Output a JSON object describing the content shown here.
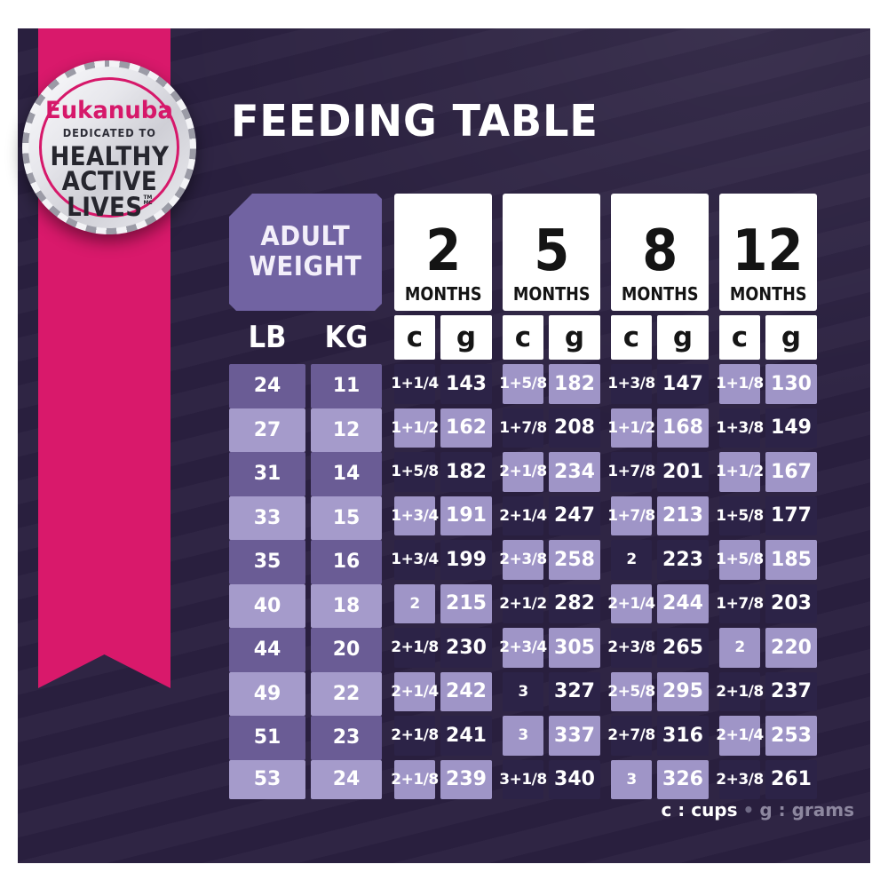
{
  "title": "FEEDING TABLE",
  "badge": {
    "brand": "Eukanuba",
    "dedicated": "DEDICATED TO",
    "healthy": "HEALTHY",
    "active": "ACTIVE",
    "lives": "LIVES",
    "tm": "TM",
    "mc": "MC"
  },
  "table": {
    "adult_weight_line1": "ADULT",
    "adult_weight_line2": "WEIGHT",
    "lb_header": "LB",
    "kg_header": "KG",
    "months": [
      {
        "number": "2",
        "label": "MONTHS"
      },
      {
        "number": "5",
        "label": "MONTHS"
      },
      {
        "number": "8",
        "label": "MONTHS"
      },
      {
        "number": "12",
        "label": "MONTHS"
      }
    ],
    "cg_headers": [
      "c",
      "g",
      "c",
      "g",
      "c",
      "g",
      "c",
      "g"
    ]
  },
  "legend": {
    "cups": "c : cups",
    "bullet": "•",
    "grams": "g : grams"
  },
  "colors": {
    "accent_pink": "#d9196b",
    "panel_dark": "#2a2040",
    "cell_dark": "#2c2347",
    "cell_light": "#9f95c7",
    "cell_medium": "#6a5c95",
    "header_purple": "#7163a2",
    "card_white": "#ffffff"
  },
  "chart_data": {
    "type": "table",
    "title": "FEEDING TABLE",
    "columns": [
      "LB",
      "KG",
      "2 MONTHS c",
      "2 MONTHS g",
      "5 MONTHS c",
      "5 MONTHS g",
      "8 MONTHS c",
      "8 MONTHS g",
      "12 MONTHS c",
      "12 MONTHS g"
    ],
    "units": {
      "c": "cups",
      "g": "grams"
    },
    "rows": [
      [
        "24",
        "11",
        "1+1/4",
        "143",
        "1+5/8",
        "182",
        "1+3/8",
        "147",
        "1+1/8",
        "130"
      ],
      [
        "27",
        "12",
        "1+1/2",
        "162",
        "1+7/8",
        "208",
        "1+1/2",
        "168",
        "1+3/8",
        "149"
      ],
      [
        "31",
        "14",
        "1+5/8",
        "182",
        "2+1/8",
        "234",
        "1+7/8",
        "201",
        "1+1/2",
        "167"
      ],
      [
        "33",
        "15",
        "1+3/4",
        "191",
        "2+1/4",
        "247",
        "1+7/8",
        "213",
        "1+5/8",
        "177"
      ],
      [
        "35",
        "16",
        "1+3/4",
        "199",
        "2+3/8",
        "258",
        "2",
        "223",
        "1+5/8",
        "185"
      ],
      [
        "40",
        "18",
        "2",
        "215",
        "2+1/2",
        "282",
        "2+1/4",
        "244",
        "1+7/8",
        "203"
      ],
      [
        "44",
        "20",
        "2+1/8",
        "230",
        "2+3/4",
        "305",
        "2+3/8",
        "265",
        "2",
        "220"
      ],
      [
        "49",
        "22",
        "2+1/4",
        "242",
        "3",
        "327",
        "2+5/8",
        "295",
        "2+1/8",
        "237"
      ],
      [
        "51",
        "23",
        "2+1/8",
        "241",
        "3",
        "337",
        "2+7/8",
        "316",
        "2+1/4",
        "253"
      ],
      [
        "53",
        "24",
        "2+1/8",
        "239",
        "3+1/8",
        "340",
        "3",
        "326",
        "2+3/8",
        "261"
      ]
    ]
  }
}
